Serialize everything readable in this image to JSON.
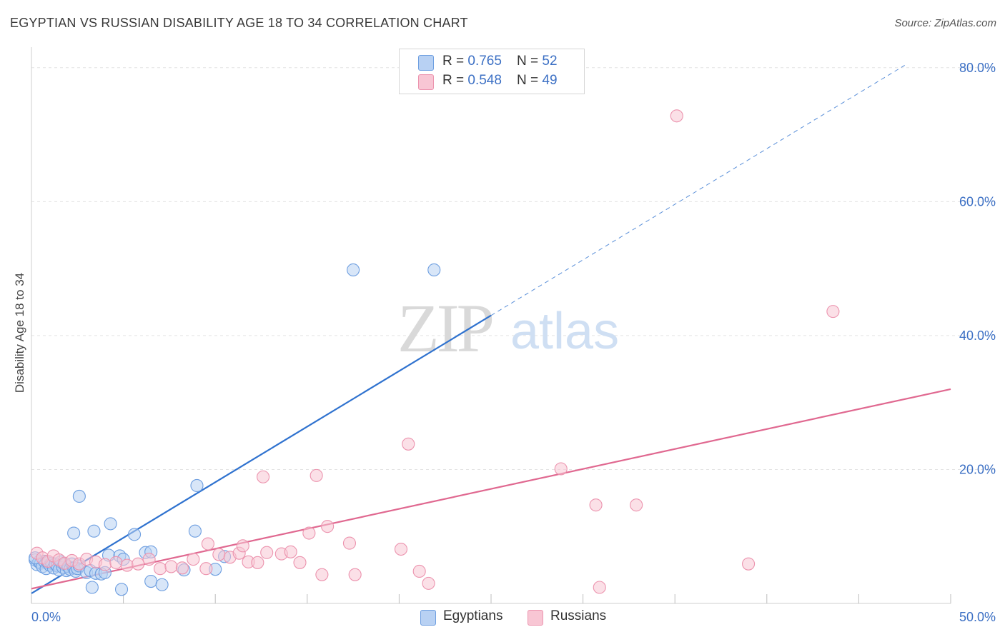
{
  "title": "EGYPTIAN VS RUSSIAN DISABILITY AGE 18 TO 34 CORRELATION CHART",
  "source": "Source: ZipAtlas.com",
  "watermark": {
    "zip": "ZIP",
    "atlas": "atlas"
  },
  "legend": {
    "rows": [
      {
        "r_label": "R = ",
        "r_value": "0.765",
        "n_label": "N = ",
        "n_value": "52"
      },
      {
        "r_label": "R = ",
        "r_value": "0.548",
        "n_label": "N = ",
        "n_value": "49"
      }
    ]
  },
  "colors": {
    "egyptians_fill": "#b8d1f3",
    "egyptians_stroke": "#6d9ee0",
    "egyptians_line": "#2f72cf",
    "russians_fill": "#f8c6d4",
    "russians_stroke": "#ec93ae",
    "russians_line": "#e06890",
    "tick_label": "#3b6fc4",
    "grid": "#e3e3e3"
  },
  "chart_data": {
    "type": "scatter",
    "title": "EGYPTIAN VS RUSSIAN DISABILITY AGE 18 TO 34 CORRELATION CHART",
    "xlabel": "",
    "ylabel": "Disability Age 18 to 34",
    "xlim": [
      0,
      50
    ],
    "ylim": [
      0,
      82
    ],
    "x_tick_labels": [
      {
        "value": 0,
        "label": "0.0%"
      },
      {
        "value": 50,
        "label": "50.0%"
      }
    ],
    "y_tick_labels": [
      {
        "value": 20,
        "label": "20.0%"
      },
      {
        "value": 40,
        "label": "40.0%"
      },
      {
        "value": 60,
        "label": "60.0%"
      },
      {
        "value": 80,
        "label": "80.0%"
      }
    ],
    "x_minor_ticks": [
      0,
      5,
      10,
      15,
      20,
      25,
      30,
      35,
      40,
      45,
      50
    ],
    "grid": true,
    "legend_position": "top-center",
    "series": [
      {
        "name": "Egyptians",
        "R": 0.765,
        "N": 52,
        "trend": {
          "x0": 0,
          "y0": 1.5,
          "x1": 25,
          "y1": 43,
          "dashed_to_x": 47.5
        },
        "points": [
          [
            0.2,
            6.5
          ],
          [
            0.3,
            5.8
          ],
          [
            0.4,
            6.2
          ],
          [
            0.5,
            6.0
          ],
          [
            0.6,
            5.5
          ],
          [
            0.7,
            6.3
          ],
          [
            0.8,
            5.2
          ],
          [
            0.9,
            6.1
          ],
          [
            1.0,
            5.7
          ],
          [
            1.1,
            6.0
          ],
          [
            1.2,
            5.3
          ],
          [
            1.3,
            5.9
          ],
          [
            1.4,
            5.6
          ],
          [
            1.5,
            5.0
          ],
          [
            1.6,
            6.2
          ],
          [
            1.7,
            5.4
          ],
          [
            1.8,
            5.8
          ],
          [
            1.9,
            4.9
          ],
          [
            2.0,
            5.5
          ],
          [
            2.1,
            5.1
          ],
          [
            2.2,
            5.9
          ],
          [
            2.3,
            5.3
          ],
          [
            2.4,
            4.8
          ],
          [
            2.5,
            5.2
          ],
          [
            2.6,
            5.6
          ],
          [
            3.0,
            4.6
          ],
          [
            3.2,
            4.9
          ],
          [
            3.5,
            4.5
          ],
          [
            3.8,
            4.4
          ],
          [
            4.0,
            4.6
          ],
          [
            2.6,
            16.0
          ],
          [
            2.3,
            10.5
          ],
          [
            3.4,
            10.8
          ],
          [
            4.3,
            11.9
          ],
          [
            5.6,
            10.3
          ],
          [
            8.9,
            10.8
          ],
          [
            9.0,
            17.6
          ],
          [
            4.2,
            7.2
          ],
          [
            4.8,
            7.1
          ],
          [
            6.2,
            7.6
          ],
          [
            6.5,
            7.7
          ],
          [
            5.0,
            6.6
          ],
          [
            3.3,
            2.4
          ],
          [
            4.9,
            2.1
          ],
          [
            6.5,
            3.3
          ],
          [
            7.1,
            2.8
          ],
          [
            8.3,
            5.0
          ],
          [
            10.0,
            5.1
          ],
          [
            10.5,
            7.0
          ],
          [
            17.5,
            49.8
          ],
          [
            21.9,
            49.8
          ],
          [
            0.2,
            6.8
          ]
        ]
      },
      {
        "name": "Russians",
        "R": 0.548,
        "N": 49,
        "trend": {
          "x0": 0,
          "y0": 2.2,
          "x1": 50,
          "y1": 32
        },
        "points": [
          [
            0.3,
            7.5
          ],
          [
            0.6,
            6.8
          ],
          [
            0.9,
            6.3
          ],
          [
            1.2,
            7.1
          ],
          [
            1.5,
            6.5
          ],
          [
            1.8,
            6.0
          ],
          [
            2.2,
            6.4
          ],
          [
            2.6,
            5.9
          ],
          [
            3.0,
            6.6
          ],
          [
            3.5,
            6.2
          ],
          [
            4.0,
            5.8
          ],
          [
            4.6,
            6.1
          ],
          [
            5.2,
            5.7
          ],
          [
            5.8,
            5.9
          ],
          [
            6.4,
            6.6
          ],
          [
            7.0,
            5.2
          ],
          [
            7.6,
            5.5
          ],
          [
            8.2,
            5.3
          ],
          [
            8.8,
            6.6
          ],
          [
            9.5,
            5.2
          ],
          [
            10.2,
            7.3
          ],
          [
            10.8,
            6.9
          ],
          [
            11.3,
            7.5
          ],
          [
            11.8,
            6.2
          ],
          [
            12.3,
            6.1
          ],
          [
            12.8,
            7.6
          ],
          [
            13.6,
            7.4
          ],
          [
            14.1,
            7.7
          ],
          [
            14.6,
            6.1
          ],
          [
            9.6,
            8.9
          ],
          [
            11.5,
            8.6
          ],
          [
            15.1,
            10.5
          ],
          [
            16.1,
            11.5
          ],
          [
            17.3,
            9.0
          ],
          [
            20.1,
            8.1
          ],
          [
            12.6,
            18.9
          ],
          [
            15.5,
            19.1
          ],
          [
            20.5,
            23.8
          ],
          [
            28.8,
            20.1
          ],
          [
            30.7,
            14.7
          ],
          [
            32.9,
            14.7
          ],
          [
            15.8,
            4.3
          ],
          [
            17.6,
            4.3
          ],
          [
            21.1,
            4.8
          ],
          [
            21.6,
            3.0
          ],
          [
            30.9,
            2.4
          ],
          [
            39.0,
            5.9
          ],
          [
            35.1,
            72.8
          ],
          [
            43.6,
            43.6
          ]
        ]
      }
    ]
  },
  "bottom_legend": [
    {
      "label": "Egyptians"
    },
    {
      "label": "Russians"
    }
  ]
}
